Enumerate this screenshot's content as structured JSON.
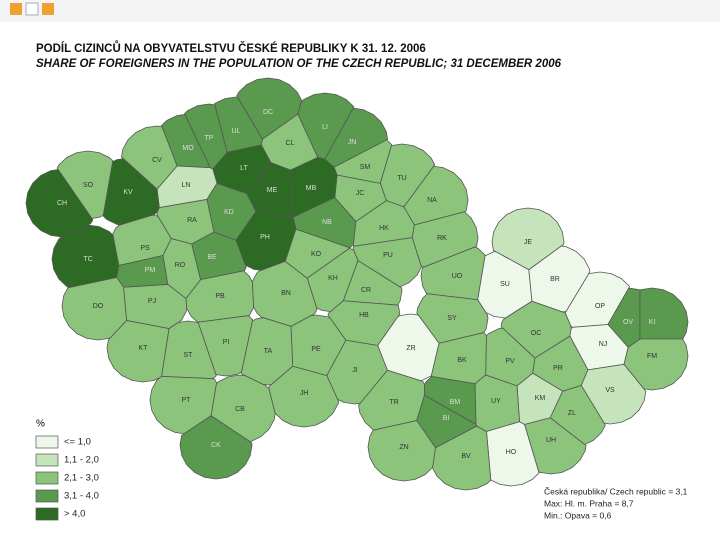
{
  "title": "PODÍL CIZINCŮ NA OBYVATELSTVU ČESKÉ REPUBLIKY K 31. 12. 2006",
  "subtitle": "SHARE OF FOREIGNERS IN THE POPULATION OF THE CZECH REPUBLIC; 31 DECEMBER 2006",
  "legend": {
    "title": "%",
    "items": [
      {
        "label": "<= 1,0",
        "color": "#eef8ea"
      },
      {
        "label": "1,1 - 2,0",
        "color": "#c6e4bb"
      },
      {
        "label": "2,1 - 3,0",
        "color": "#8cc47c"
      },
      {
        "label": "3,1 - 4,0",
        "color": "#5a9a4e"
      },
      {
        "label": "> 4,0",
        "color": "#2d6b24"
      }
    ]
  },
  "districts": [
    {
      "code": "DC",
      "class": 3
    },
    {
      "code": "CL",
      "class": 2
    },
    {
      "code": "LI",
      "class": 3
    },
    {
      "code": "JN",
      "class": 3
    },
    {
      "code": "SM",
      "class": 2
    },
    {
      "code": "TU",
      "class": 2
    },
    {
      "code": "NA",
      "class": 2
    },
    {
      "code": "JC",
      "class": 2
    },
    {
      "code": "MB",
      "class": 4
    },
    {
      "code": "ME",
      "class": 4
    },
    {
      "code": "LT",
      "class": 4
    },
    {
      "code": "UL",
      "class": 3
    },
    {
      "code": "TP",
      "class": 3
    },
    {
      "code": "MO",
      "class": 3
    },
    {
      "code": "CV",
      "class": 2
    },
    {
      "code": "LN",
      "class": 1
    },
    {
      "code": "SO",
      "class": 2
    },
    {
      "code": "KV",
      "class": 4
    },
    {
      "code": "CH",
      "class": 4
    },
    {
      "code": "KD",
      "class": 3
    },
    {
      "code": "RA",
      "class": 2
    },
    {
      "code": "NB",
      "class": 3
    },
    {
      "code": "HK",
      "class": 2
    },
    {
      "code": "RK",
      "class": 2
    },
    {
      "code": "PH",
      "class": 4
    },
    {
      "code": "PS",
      "class": 2
    },
    {
      "code": "TC",
      "class": 4
    },
    {
      "code": "PM",
      "class": 3
    },
    {
      "code": "RO",
      "class": 2
    },
    {
      "code": "BE",
      "class": 3
    },
    {
      "code": "KO",
      "class": 2
    },
    {
      "code": "PU",
      "class": 2
    },
    {
      "code": "JE",
      "class": 1
    },
    {
      "code": "KH",
      "class": 2
    },
    {
      "code": "UO",
      "class": 2
    },
    {
      "code": "SU",
      "class": 0
    },
    {
      "code": "BR",
      "class": 0
    },
    {
      "code": "PJ",
      "class": 2
    },
    {
      "code": "PB",
      "class": 2
    },
    {
      "code": "BN",
      "class": 2
    },
    {
      "code": "CR",
      "class": 2
    },
    {
      "code": "OP",
      "class": 0
    },
    {
      "code": "DO",
      "class": 2
    },
    {
      "code": "HB",
      "class": 2
    },
    {
      "code": "SY",
      "class": 2
    },
    {
      "code": "OV",
      "class": 3
    },
    {
      "code": "KI",
      "class": 3
    },
    {
      "code": "ZR",
      "class": 0
    },
    {
      "code": "OC",
      "class": 2
    },
    {
      "code": "NJ",
      "class": 0
    },
    {
      "code": "KT",
      "class": 2
    },
    {
      "code": "PI",
      "class": 2
    },
    {
      "code": "PE",
      "class": 2
    },
    {
      "code": "BK",
      "class": 2
    },
    {
      "code": "PV",
      "class": 2
    },
    {
      "code": "PR",
      "class": 2
    },
    {
      "code": "FM",
      "class": 2
    },
    {
      "code": "ST",
      "class": 2
    },
    {
      "code": "TA",
      "class": 2
    },
    {
      "code": "JI",
      "class": 2
    },
    {
      "code": "VS",
      "class": 1
    },
    {
      "code": "BM",
      "class": 3
    },
    {
      "code": "KM",
      "class": 1
    },
    {
      "code": "UY",
      "class": 2
    },
    {
      "code": "JH",
      "class": 2
    },
    {
      "code": "TR",
      "class": 2
    },
    {
      "code": "PT",
      "class": 2
    },
    {
      "code": "CB",
      "class": 2
    },
    {
      "code": "ZL",
      "class": 2
    },
    {
      "code": "BI",
      "class": 3
    },
    {
      "code": "UH",
      "class": 2
    },
    {
      "code": "ZN",
      "class": 2
    },
    {
      "code": "CK",
      "class": 3
    },
    {
      "code": "HO",
      "class": 0
    },
    {
      "code": "BV",
      "class": 2
    }
  ],
  "notes": [
    "Česká republika/ Czech republic = 3,1",
    "Max: Hl. m. Praha = 8,7",
    "Min.: Opava = 0,6"
  ]
}
